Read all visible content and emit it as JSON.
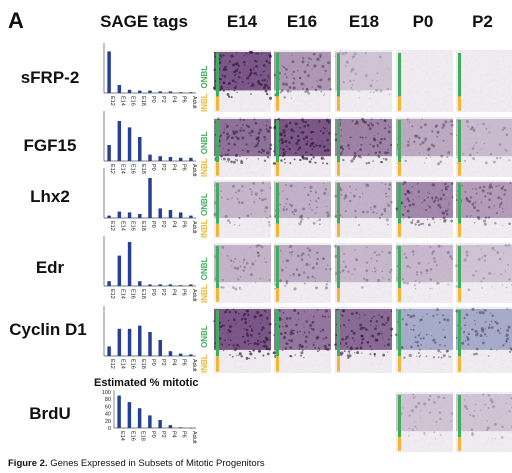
{
  "panel_label": "A",
  "headers": {
    "sage_tags": "SAGE tags",
    "stages": [
      "E14",
      "E16",
      "E18",
      "P0",
      "P2"
    ]
  },
  "layer_labels": {
    "onbl": "ONBL",
    "inbl": "INBL"
  },
  "colors": {
    "bar": "#233f9a",
    "onbl": "#3fae5a",
    "inbl": "#f2b632"
  },
  "estimated_label": "Estimated % mitotic",
  "caption": {
    "bold": "Figure 2.",
    "text": " Genes Expressed in Subsets of Mitotic Progenitors"
  },
  "genes": [
    {
      "name": "sFRP-2",
      "intensity": [
        0.95,
        0.45,
        0.08,
        0,
        0
      ],
      "hue": "purple",
      "panels": [
        1,
        1,
        1,
        1,
        1
      ]
    },
    {
      "name": "FGF15",
      "intensity": [
        0.75,
        0.95,
        0.6,
        0.3,
        0.15
      ],
      "hue": "purple",
      "panels": [
        1,
        1,
        1,
        1,
        1
      ]
    },
    {
      "name": "Lhx2",
      "intensity": [
        0.2,
        0.25,
        0.25,
        0.55,
        0.4
      ],
      "hue": "purple",
      "panels": [
        1,
        1,
        1,
        1,
        1
      ]
    },
    {
      "name": "Edr",
      "intensity": [
        0.22,
        0.28,
        0.18,
        0.18,
        0.08
      ],
      "hue": "purple",
      "panels": [
        1,
        1,
        1,
        1,
        1
      ]
    },
    {
      "name": "Cyclin D1",
      "intensity": [
        0.95,
        0.7,
        0.8,
        0.45,
        0.45
      ],
      "hue": "mixed",
      "panels": [
        1,
        1,
        1,
        1,
        1
      ]
    },
    {
      "name": "BrdU",
      "intensity": [
        0,
        0,
        0,
        0.08,
        0.08
      ],
      "hue": "none",
      "panels": [
        0,
        0,
        0,
        1,
        1
      ]
    }
  ],
  "chart_data": [
    {
      "type": "bar",
      "title": "",
      "categories": [
        "E12",
        "E14",
        "E16",
        "E18",
        "P0",
        "P2",
        "P4",
        "P6",
        "Adult"
      ],
      "values": [
        52,
        10,
        4,
        3,
        3,
        2,
        2,
        1,
        1
      ],
      "ylim": [
        0,
        60
      ]
    },
    {
      "type": "bar",
      "title": "",
      "categories": [
        "E12",
        "E14",
        "E16",
        "E18",
        "P0",
        "P2",
        "P4",
        "P6",
        "Adult"
      ],
      "values": [
        20,
        50,
        42,
        30,
        8,
        6,
        5,
        4,
        4
      ],
      "ylim": [
        0,
        60
      ]
    },
    {
      "type": "bar",
      "title": "",
      "categories": [
        "E12",
        "E14",
        "E16",
        "E18",
        "P0",
        "P2",
        "P4",
        "P6",
        "Adult"
      ],
      "values": [
        3,
        8,
        7,
        5,
        50,
        12,
        10,
        7,
        3
      ],
      "ylim": [
        0,
        60
      ]
    },
    {
      "type": "bar",
      "title": "",
      "categories": [
        "E12",
        "E14",
        "E16",
        "E18",
        "P0",
        "P2",
        "P4",
        "P6",
        "Adult"
      ],
      "values": [
        6,
        38,
        55,
        6,
        2,
        2,
        2,
        1,
        2
      ],
      "ylim": [
        0,
        60
      ]
    },
    {
      "type": "bar",
      "title": "",
      "categories": [
        "E12",
        "E14",
        "E16",
        "E18",
        "P0",
        "P2",
        "P4",
        "P6",
        "Adult"
      ],
      "values": [
        12,
        34,
        34,
        38,
        30,
        20,
        6,
        3,
        2
      ],
      "ylim": [
        0,
        60
      ]
    },
    {
      "type": "bar",
      "title": "Estimated % mitotic",
      "categories": [
        "E14",
        "E16",
        "E18",
        "P0",
        "P2",
        "P4",
        "P6",
        "Adult"
      ],
      "values": [
        90,
        72,
        55,
        35,
        22,
        8,
        2,
        0
      ],
      "ylim": [
        0,
        100
      ],
      "yticks": [
        "100",
        "80",
        "60",
        "40",
        "20",
        "0"
      ]
    }
  ]
}
